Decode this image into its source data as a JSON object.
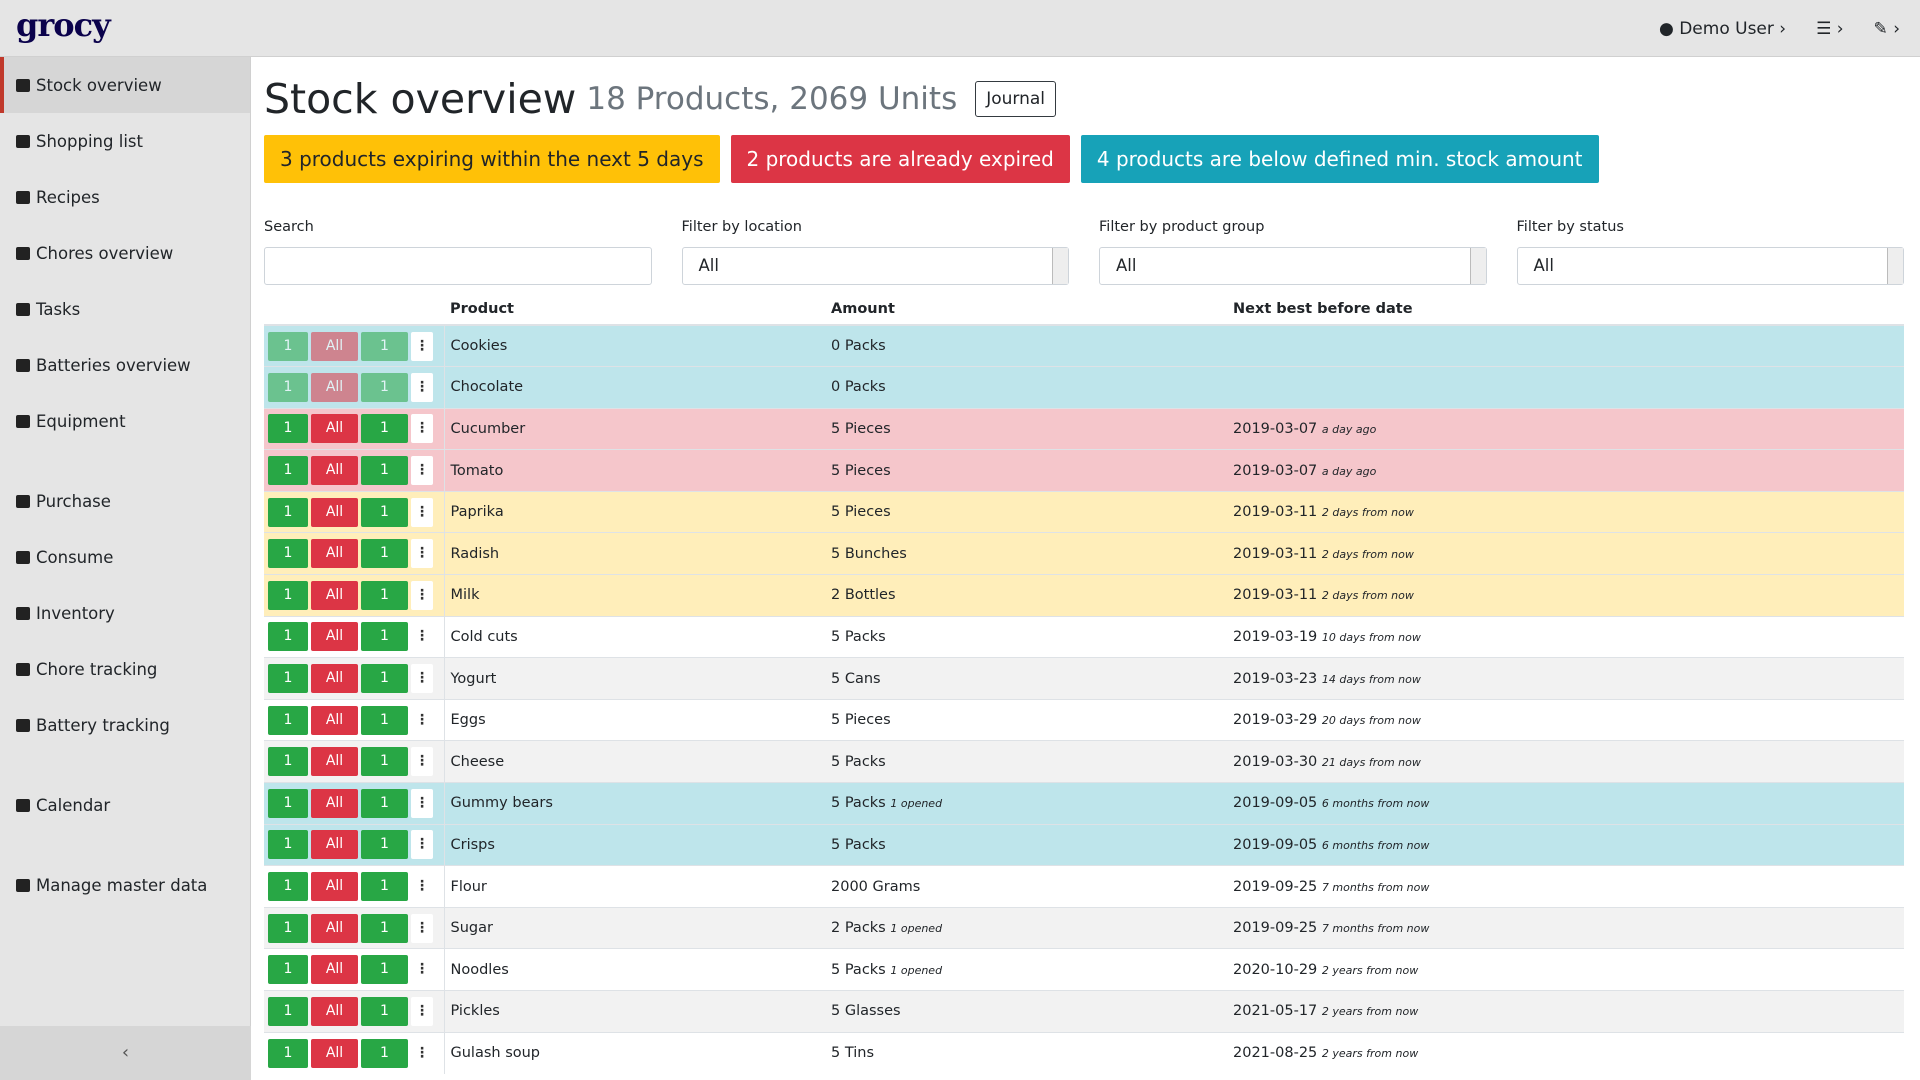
{
  "header": {
    "logo": "grocy",
    "user": "Demo User"
  },
  "nav": [
    [
      "Stock overview",
      "Shopping list",
      "Recipes",
      "Chores overview",
      "Tasks",
      "Batteries overview",
      "Equipment"
    ],
    [
      "Purchase",
      "Consume",
      "Inventory",
      "Chore tracking",
      "Battery tracking"
    ],
    [
      "Calendar"
    ],
    [
      "Manage master data"
    ]
  ],
  "page": {
    "title": "Stock overview",
    "subtitle": "18 Products, 2069 Units",
    "journal": "Journal"
  },
  "alerts": [
    {
      "text": "3 products expiring within the next 5 days",
      "color": "#ffc107",
      "text_color": "#212529"
    },
    {
      "text": "2 products are already expired",
      "color": "#dc3545",
      "text_color": "#ffffff"
    },
    {
      "text": "4 products are below defined min. stock amount",
      "color": "#17a2b8",
      "text_color": "#ffffff"
    }
  ],
  "filters": [
    {
      "label": "Search"
    },
    {
      "label": "Filter by location",
      "value": "All"
    },
    {
      "label": "Filter by product group",
      "value": "All"
    },
    {
      "label": "Filter by status",
      "value": "All"
    }
  ],
  "table": {
    "buttons": [
      "1",
      "All",
      "1"
    ],
    "headers": [
      "Product",
      "Amount",
      "Next best before date"
    ],
    "rows": [
      {
        "product": "Cookies",
        "amount": "0 Packs",
        "row_color": "#bee5eb",
        "disabled": true
      },
      {
        "product": "Chocolate",
        "amount": "0 Packs",
        "row_color": "#bee5eb",
        "disabled": true
      },
      {
        "product": "Cucumber",
        "amount": "5 Pieces",
        "date": "2019-03-07",
        "relative": "a day ago",
        "row_color": "#f5c6cb"
      },
      {
        "product": "Tomato",
        "amount": "5 Pieces",
        "date": "2019-03-07",
        "relative": "a day ago",
        "row_color": "#f5c6cb"
      },
      {
        "product": "Paprika",
        "amount": "5 Pieces",
        "date": "2019-03-11",
        "relative": "2 days from now",
        "row_color": "#ffeeba"
      },
      {
        "product": "Radish",
        "amount": "5 Bunches",
        "date": "2019-03-11",
        "relative": "2 days from now",
        "row_color": "#ffeeba"
      },
      {
        "product": "Milk",
        "amount": "2 Bottles",
        "date": "2019-03-11",
        "relative": "2 days from now",
        "row_color": "#ffeeba"
      },
      {
        "product": "Cold cuts",
        "amount": "5 Packs",
        "date": "2019-03-19",
        "relative": "10 days from now",
        "row_color": "#ffffff"
      },
      {
        "product": "Yogurt",
        "amount": "5 Cans",
        "date": "2019-03-23",
        "relative": "14 days from now",
        "row_color": "#f2f2f2"
      },
      {
        "product": "Eggs",
        "amount": "5 Pieces",
        "date": "2019-03-29",
        "relative": "20 days from now",
        "row_color": "#ffffff"
      },
      {
        "product": "Cheese",
        "amount": "5 Packs",
        "date": "2019-03-30",
        "relative": "21 days from now",
        "row_color": "#f2f2f2"
      },
      {
        "product": "Gummy bears",
        "amount": "5 Packs",
        "opened": "1 opened",
        "date": "2019-09-05",
        "relative": "6 months from now",
        "row_color": "#bee5eb"
      },
      {
        "product": "Crisps",
        "amount": "5 Packs",
        "date": "2019-09-05",
        "relative": "6 months from now",
        "row_color": "#bee5eb"
      },
      {
        "product": "Flour",
        "amount": "2000 Grams",
        "date": "2019-09-25",
        "relative": "7 months from now",
        "row_color": "#ffffff"
      },
      {
        "product": "Sugar",
        "amount": "2 Packs",
        "opened": "1 opened",
        "date": "2019-09-25",
        "relative": "7 months from now",
        "row_color": "#f2f2f2"
      },
      {
        "product": "Noodles",
        "amount": "5 Packs",
        "opened": "1 opened",
        "date": "2020-10-29",
        "relative": "2 years from now",
        "row_color": "#ffffff"
      },
      {
        "product": "Pickles",
        "amount": "5 Glasses",
        "date": "2021-05-17",
        "relative": "2 years from now",
        "row_color": "#f2f2f2"
      },
      {
        "product": "Gulash soup",
        "amount": "5 Tins",
        "date": "2021-08-25",
        "relative": "2 years from now",
        "row_color": "#ffffff"
      }
    ]
  }
}
